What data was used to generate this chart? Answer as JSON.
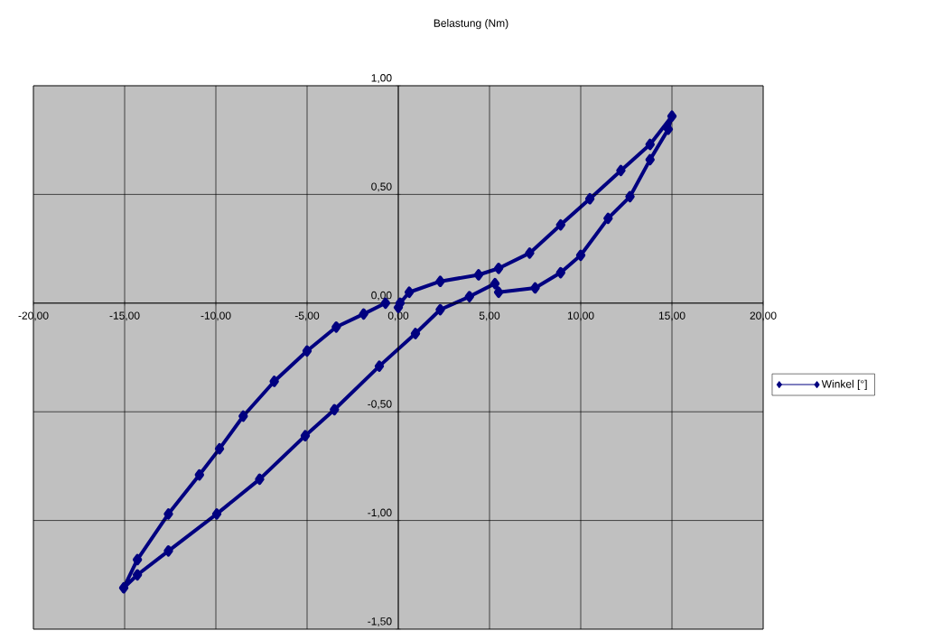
{
  "chart_data": {
    "type": "line",
    "title": "Belastung (Nm)",
    "xlim": [
      -20,
      20
    ],
    "ylim": [
      -1.5,
      1
    ],
    "xticks": [
      {
        "value": -20,
        "label": "-20,00"
      },
      {
        "value": -15,
        "label": "-15,00"
      },
      {
        "value": -10,
        "label": "-10,00"
      },
      {
        "value": -5,
        "label": "-5,00"
      },
      {
        "value": 0,
        "label": "0,00"
      },
      {
        "value": 5,
        "label": "5,00"
      },
      {
        "value": 10,
        "label": "10,00"
      },
      {
        "value": 15,
        "label": "15,00"
      },
      {
        "value": 20,
        "label": "20,00"
      }
    ],
    "yticks": [
      {
        "value": 1,
        "label": "1,00"
      },
      {
        "value": 0.5,
        "label": "0,50"
      },
      {
        "value": 0,
        "label": "0,00"
      },
      {
        "value": -0.5,
        "label": "-0,50"
      },
      {
        "value": -1,
        "label": "-1,00"
      },
      {
        "value": -1.5,
        "label": "-1,50"
      }
    ],
    "grid": true,
    "legend": "right",
    "marker": "diamond",
    "line_style": "solid",
    "series": [
      {
        "name": "Winkel [°]",
        "color": "#000080",
        "x": [
          0,
          0.1,
          0.6,
          2.3,
          4.4,
          5.5,
          7.2,
          8.9,
          10.5,
          12.2,
          13.8,
          15,
          14.8,
          13.8,
          12.7,
          11.5,
          10,
          8.9,
          7.5,
          5.5,
          5.3,
          3.9,
          2.3,
          0.94,
          -1.04,
          -3.5,
          -5.1,
          -7.6,
          -9.95,
          -12.6,
          -14.3,
          -15.05,
          -14.3,
          -12.6,
          -10.9,
          -9.8,
          -8.5,
          -6.8,
          -5,
          -3.4,
          -1.9,
          -0.7
        ],
        "values": [
          -0.02,
          0,
          0.05,
          0.1,
          0.13,
          0.16,
          0.23,
          0.36,
          0.48,
          0.61,
          0.73,
          0.86,
          0.8,
          0.66,
          0.49,
          0.39,
          0.22,
          0.14,
          0.07,
          0.05,
          0.09,
          0.03,
          -0.03,
          -0.14,
          -0.29,
          -0.49,
          -0.61,
          -0.81,
          -0.97,
          -1.14,
          -1.25,
          -1.31,
          -1.18,
          -0.97,
          -0.79,
          -0.67,
          -0.52,
          -0.36,
          -0.22,
          -0.11,
          -0.05,
          0
        ]
      }
    ]
  }
}
